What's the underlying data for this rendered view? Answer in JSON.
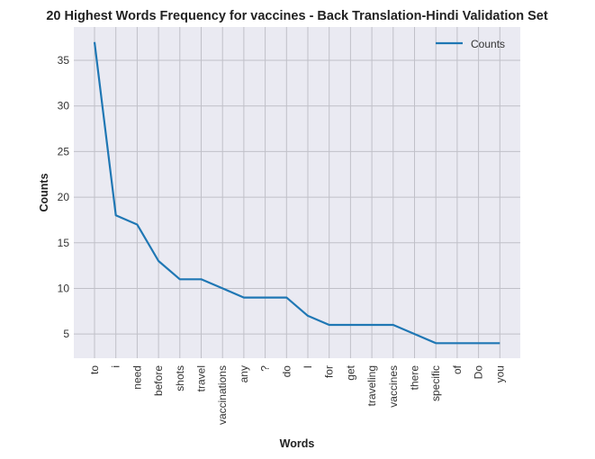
{
  "chart_data": {
    "type": "line",
    "title": "20 Highest Words Frequency for vaccines - Back Translation-Hindi Validation Set",
    "xlabel": "Words",
    "ylabel": "Counts",
    "categories": [
      "to",
      "i",
      "need",
      "before",
      "shots",
      "travel",
      "vaccinations",
      "any",
      "?",
      "do",
      "I",
      "for",
      "get",
      "traveling",
      "vaccines",
      "there",
      "specific",
      "of",
      "Do",
      "you"
    ],
    "series": [
      {
        "name": "Counts",
        "values": [
          37,
          18,
          17,
          13,
          11,
          11,
          10,
          9,
          9,
          9,
          7,
          6,
          6,
          6,
          6,
          5,
          4,
          4,
          4,
          4
        ]
      }
    ],
    "yticks": [
      5,
      10,
      15,
      20,
      25,
      30,
      35
    ],
    "ylim": [
      2.35,
      38.65
    ],
    "grid": true,
    "legend": "top-right",
    "line_color": "#1f77b4",
    "background_color": "#eaeaf2",
    "grid_color": "#c0c0c8"
  }
}
